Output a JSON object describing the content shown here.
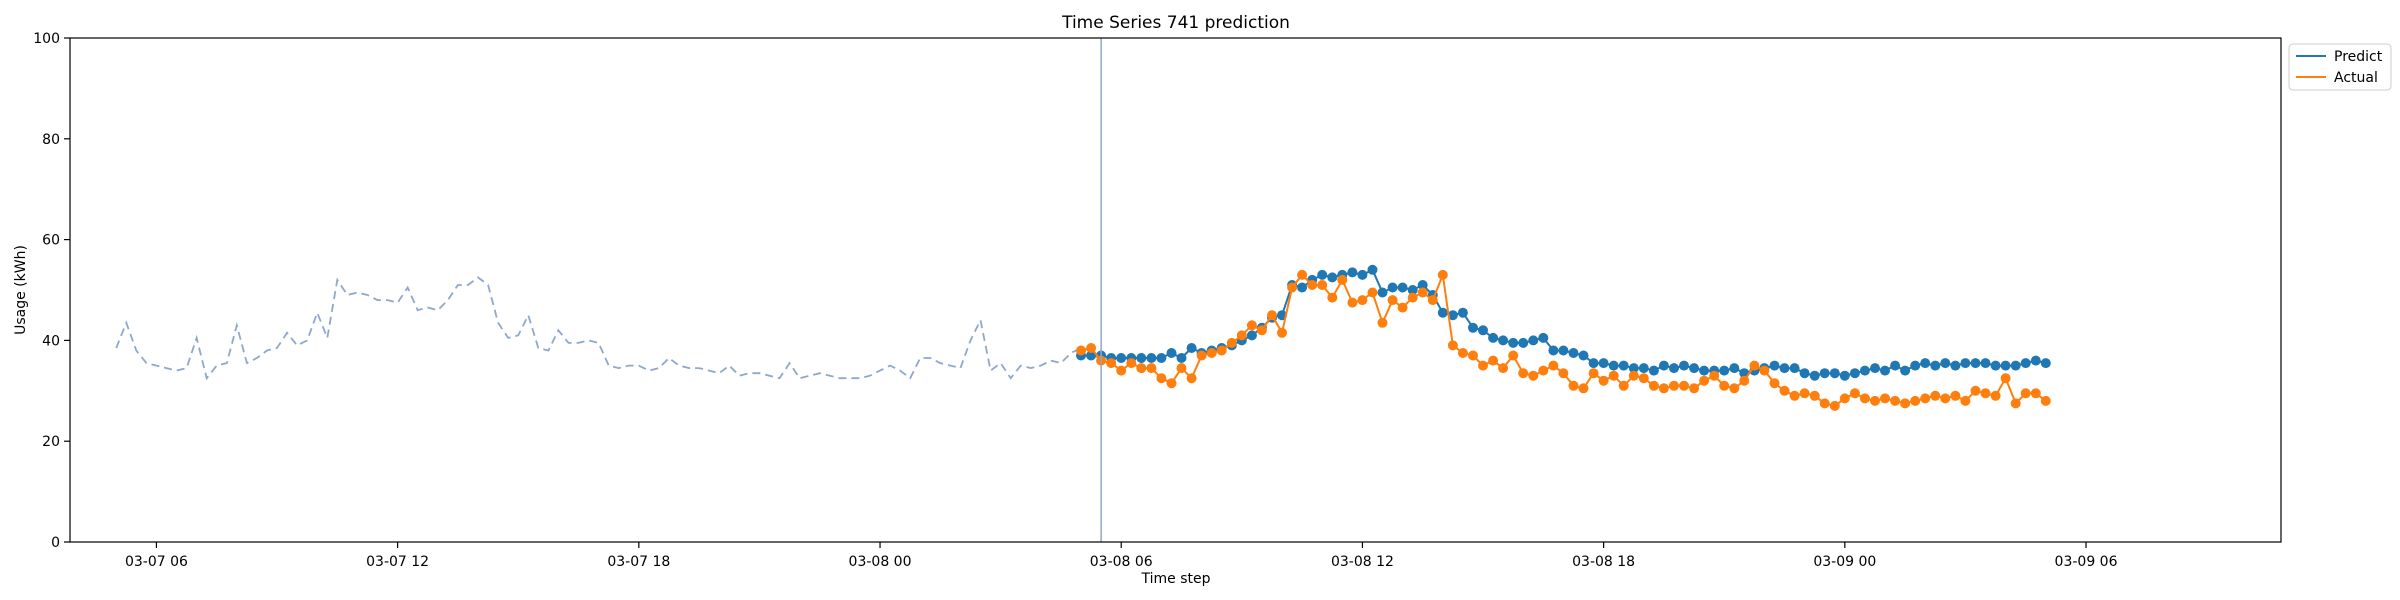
{
  "chart_data": {
    "type": "line",
    "title": "Time Series 741 prediction",
    "xlabel": "Time step",
    "ylabel": "Usage (kWh)",
    "ylim": [
      0,
      100
    ],
    "xlim_hours": [
      -1.15,
      53.85
    ],
    "x_unit": "hours since 03-07 05:00",
    "yticks": [
      0,
      20,
      40,
      60,
      80,
      100
    ],
    "ytick_labels": [
      "0",
      "20",
      "40",
      "60",
      "80",
      "100"
    ],
    "xticks": [
      1,
      7,
      13,
      19,
      25,
      31,
      37,
      43,
      49
    ],
    "xtick_labels": [
      "03-07 06",
      "03-07 12",
      "03-07 18",
      "03-08 00",
      "03-08 06",
      "03-08 12",
      "03-08 18",
      "03-09 00",
      "03-09 06"
    ],
    "vline_x": 24.5,
    "legend_position": "top-right",
    "history": {
      "start_x": 0,
      "step": 0.25,
      "style": "dashed",
      "color": "#8ea8c9",
      "values": [
        38.5,
        43.5,
        38.0,
        35.5,
        35.0,
        34.5,
        34.0,
        34.5,
        40.5,
        32.5,
        35.0,
        35.5,
        43.0,
        35.5,
        36.5,
        38.0,
        38.5,
        41.5,
        39.0,
        40.0,
        45.5,
        40.5,
        52.0,
        49.0,
        49.5,
        49.0,
        48.0,
        48.0,
        47.5,
        50.5,
        46.0,
        46.5,
        46.0,
        48.0,
        51.0,
        51.0,
        52.5,
        51.0,
        43.5,
        40.5,
        41.0,
        45.0,
        38.5,
        38.0,
        42.0,
        39.5,
        39.5,
        40.0,
        39.5,
        35.0,
        34.5,
        35.0,
        35.0,
        34.0,
        34.5,
        36.5,
        35.0,
        34.5,
        34.5,
        34.0,
        33.5,
        35.0,
        33.0,
        33.5,
        33.5,
        33.0,
        32.5,
        35.5,
        32.5,
        33.0,
        33.5,
        33.0,
        32.5,
        32.5,
        32.5,
        33.0,
        34.0,
        35.0,
        34.0,
        32.5,
        36.5,
        36.5,
        35.5,
        35.0,
        34.5,
        40.0,
        44.0,
        34.0,
        35.5,
        32.5,
        35.0,
        34.5,
        35.0,
        36.0,
        35.5,
        37.5,
        38.5
      ]
    },
    "x": [
      24.0,
      24.25,
      24.5,
      24.75,
      25.0,
      25.25,
      25.5,
      25.75,
      26.0,
      26.25,
      26.5,
      26.75,
      27.0,
      27.25,
      27.5,
      27.75,
      28.0,
      28.25,
      28.5,
      28.75,
      29.0,
      29.25,
      29.5,
      29.75,
      30.0,
      30.25,
      30.5,
      30.75,
      31.0,
      31.25,
      31.5,
      31.75,
      32.0,
      32.25,
      32.5,
      32.75,
      33.0,
      33.25,
      33.5,
      33.75,
      34.0,
      34.25,
      34.5,
      34.75,
      35.0,
      35.25,
      35.5,
      35.75,
      36.0,
      36.25,
      36.5,
      36.75,
      37.0,
      37.25,
      37.5,
      37.75,
      38.0,
      38.25,
      38.5,
      38.75,
      39.0,
      39.25,
      39.5,
      39.75,
      40.0,
      40.25,
      40.5,
      40.75,
      41.0,
      41.25,
      41.5,
      41.75,
      42.0,
      42.25,
      42.5,
      42.75,
      43.0,
      43.25,
      43.5,
      43.75,
      44.0,
      44.25,
      44.5,
      44.75,
      45.0,
      45.25,
      45.5,
      45.75,
      46.0,
      46.25,
      46.5,
      46.75,
      47.0,
      47.25,
      47.5,
      47.75,
      48.0
    ],
    "series": [
      {
        "name": "Predict",
        "color": "#1f77b4",
        "values": [
          37.0,
          37.0,
          37.0,
          36.5,
          36.5,
          36.5,
          36.5,
          36.5,
          36.5,
          37.5,
          36.5,
          38.5,
          37.5,
          38.0,
          38.5,
          39.0,
          40.0,
          41.0,
          42.5,
          44.5,
          45.0,
          51.0,
          50.5,
          52.0,
          53.0,
          52.5,
          53.0,
          53.5,
          53.0,
          54.0,
          49.5,
          50.5,
          50.5,
          50.0,
          51.0,
          49.0,
          45.5,
          45.0,
          45.5,
          42.5,
          42.0,
          40.5,
          40.0,
          39.5,
          39.5,
          40.0,
          40.5,
          38.0,
          38.0,
          37.5,
          37.0,
          35.5,
          35.5,
          35.0,
          35.0,
          34.5,
          34.5,
          34.0,
          35.0,
          34.5,
          35.0,
          34.5,
          34.0,
          34.0,
          34.0,
          34.5,
          33.5,
          34.0,
          34.5,
          35.0,
          34.5,
          34.5,
          33.5,
          33.0,
          33.5,
          33.5,
          33.0,
          33.5,
          34.0,
          34.5,
          34.0,
          35.0,
          34.0,
          35.0,
          35.5,
          35.0,
          35.5,
          35.0,
          35.5,
          35.5,
          35.5,
          35.0,
          35.0,
          35.0,
          35.5,
          36.0,
          35.5
        ]
      },
      {
        "name": "Actual",
        "color": "#ff7f0e",
        "values": [
          38.0,
          38.5,
          36.0,
          35.5,
          34.0,
          35.5,
          34.5,
          34.5,
          32.5,
          31.5,
          34.5,
          32.5,
          37.0,
          37.5,
          38.0,
          39.5,
          41.0,
          43.0,
          42.0,
          45.0,
          41.5,
          50.5,
          53.0,
          51.0,
          51.0,
          48.5,
          52.0,
          47.5,
          48.0,
          49.5,
          43.5,
          48.0,
          46.5,
          48.5,
          49.5,
          48.0,
          53.0,
          39.0,
          37.5,
          37.0,
          35.0,
          36.0,
          34.5,
          37.0,
          33.5,
          33.0,
          34.0,
          35.0,
          33.5,
          31.0,
          30.5,
          33.5,
          32.0,
          33.0,
          31.0,
          33.0,
          32.5,
          31.0,
          30.5,
          31.0,
          31.0,
          30.5,
          32.0,
          33.0,
          31.0,
          30.5,
          32.0,
          35.0,
          34.0,
          31.5,
          30.0,
          29.0,
          29.5,
          29.0,
          27.5,
          27.0,
          28.5,
          29.5,
          28.5,
          28.0,
          28.5,
          28.0,
          27.5,
          28.0,
          28.5,
          29.0,
          28.5,
          29.0,
          28.0,
          30.0,
          29.5,
          29.0,
          32.5,
          27.5,
          29.5,
          29.5,
          28.0
        ]
      }
    ]
  }
}
